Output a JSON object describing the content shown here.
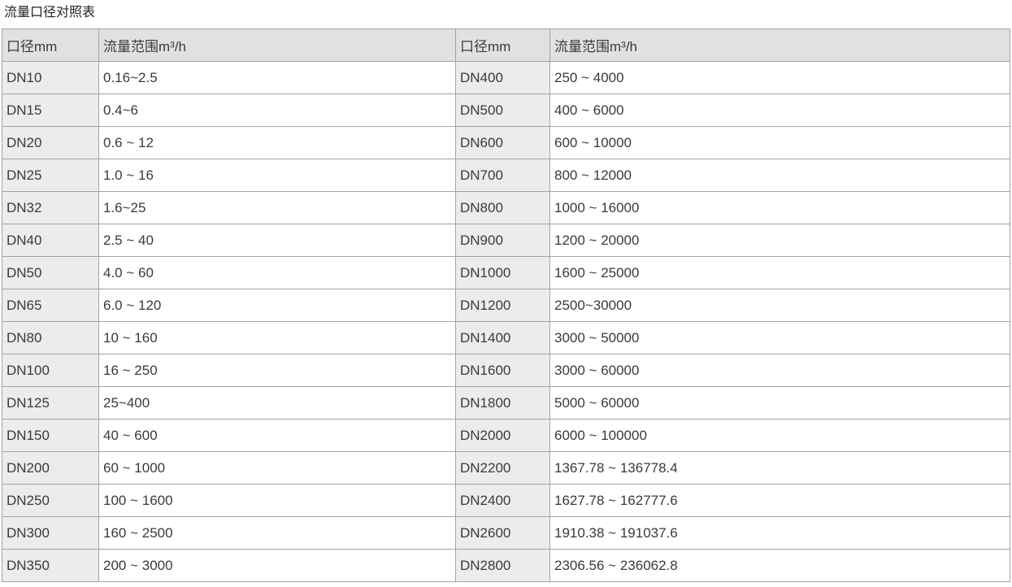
{
  "title": "流量口径对照表",
  "colors": {
    "header_bg": "#e1e1e1",
    "dn_cell_bg": "#ececec",
    "flow_cell_bg": "#ffffff",
    "border": "#a3a3a3",
    "text": "#3a3a3a"
  },
  "table": {
    "headers": [
      "口径mm",
      "流量范围m³/h",
      "口径mm",
      "流量范围m³/h"
    ],
    "rows": [
      [
        "DN10",
        "0.16~2.5",
        "DN400",
        "250 ~ 4000"
      ],
      [
        "DN15",
        "0.4~6",
        "DN500",
        "400 ~ 6000"
      ],
      [
        "DN20",
        "0.6 ~ 12",
        "DN600",
        "600 ~ 10000"
      ],
      [
        "DN25",
        "1.0 ~ 16",
        "DN700",
        "800 ~ 12000"
      ],
      [
        "DN32",
        "1.6~25",
        "DN800",
        "1000 ~ 16000"
      ],
      [
        "DN40",
        "2.5 ~ 40",
        "DN900",
        "1200 ~ 20000"
      ],
      [
        "DN50",
        "4.0 ~ 60",
        "DN1000",
        "1600 ~ 25000"
      ],
      [
        "DN65",
        "6.0 ~ 120",
        "DN1200",
        "2500~30000"
      ],
      [
        "DN80",
        "10 ~ 160",
        "DN1400",
        "3000 ~ 50000"
      ],
      [
        "DN100",
        "16 ~ 250",
        "DN1600",
        "3000 ~ 60000"
      ],
      [
        "DN125",
        "25~400",
        "DN1800",
        "5000 ~ 60000"
      ],
      [
        "DN150",
        "40 ~ 600",
        "DN2000",
        "6000 ~ 100000"
      ],
      [
        "DN200",
        "60 ~ 1000",
        "DN2200",
        "1367.78 ~ 136778.4"
      ],
      [
        "DN250",
        "100 ~ 1600",
        "DN2400",
        "1627.78 ~ 162777.6"
      ],
      [
        "DN300",
        "160 ~ 2500",
        "DN2600",
        "1910.38 ~ 191037.6"
      ],
      [
        "DN350",
        "200 ~ 3000",
        "DN2800",
        "2306.56 ~ 236062.8"
      ]
    ]
  }
}
